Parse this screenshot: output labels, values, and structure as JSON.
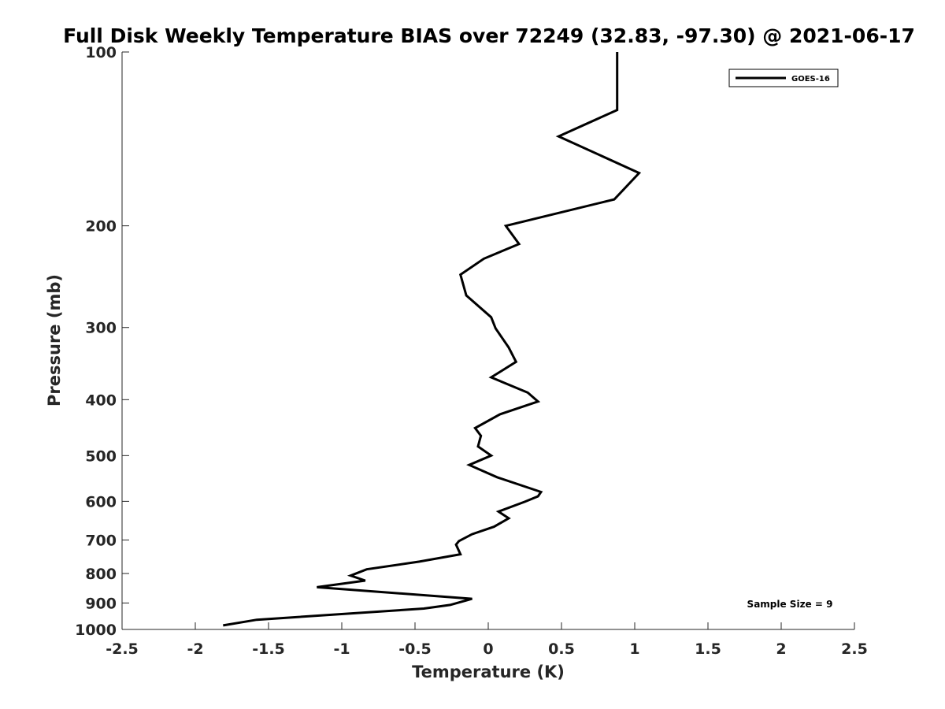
{
  "chart_data": {
    "type": "line",
    "title": "Full Disk Weekly Temperature BIAS over 72249 (32.83, -97.30) @ 2021-06-17",
    "xlabel": "Temperature (K)",
    "ylabel": "Pressure (mb)",
    "xlim": [
      -2.5,
      2.5
    ],
    "ylim": [
      100,
      1000
    ],
    "yscale": "log",
    "y_reversed": true,
    "grid": false,
    "legend_position": "top-right",
    "x_ticks": [
      -2.5,
      -2,
      -1.5,
      -1,
      -0.5,
      0,
      0.5,
      1,
      1.5,
      2,
      2.5
    ],
    "x_tick_labels": [
      "-2.5",
      "-2",
      "-1.5",
      "-1",
      "-0.5",
      "0",
      "0.5",
      "1",
      "1.5",
      "2",
      "2.5"
    ],
    "y_ticks": [
      100,
      200,
      300,
      400,
      500,
      600,
      700,
      800,
      900,
      1000
    ],
    "y_tick_labels": [
      "100",
      "200",
      "300",
      "400",
      "500",
      "600",
      "700",
      "800",
      "900",
      "1000"
    ],
    "annotation": "Sample Size = 9",
    "series": [
      {
        "name": "GOES-16",
        "color": "#000000",
        "points": [
          {
            "x": 0.88,
            "p": 100
          },
          {
            "x": 0.88,
            "p": 126
          },
          {
            "x": 0.48,
            "p": 140
          },
          {
            "x": 1.03,
            "p": 162
          },
          {
            "x": 0.86,
            "p": 180
          },
          {
            "x": 0.12,
            "p": 200
          },
          {
            "x": 0.21,
            "p": 215
          },
          {
            "x": -0.03,
            "p": 228
          },
          {
            "x": -0.19,
            "p": 243
          },
          {
            "x": -0.15,
            "p": 264
          },
          {
            "x": 0.02,
            "p": 288
          },
          {
            "x": 0.05,
            "p": 301
          },
          {
            "x": 0.14,
            "p": 325
          },
          {
            "x": 0.19,
            "p": 344
          },
          {
            "x": 0.02,
            "p": 366
          },
          {
            "x": 0.27,
            "p": 389
          },
          {
            "x": 0.34,
            "p": 403
          },
          {
            "x": 0.08,
            "p": 424
          },
          {
            "x": -0.09,
            "p": 448
          },
          {
            "x": -0.05,
            "p": 462
          },
          {
            "x": -0.06,
            "p": 472
          },
          {
            "x": -0.07,
            "p": 482
          },
          {
            "x": 0.02,
            "p": 500
          },
          {
            "x": -0.13,
            "p": 519
          },
          {
            "x": 0.06,
            "p": 545
          },
          {
            "x": 0.36,
            "p": 578
          },
          {
            "x": 0.34,
            "p": 588
          },
          {
            "x": 0.25,
            "p": 601
          },
          {
            "x": 0.07,
            "p": 625
          },
          {
            "x": 0.14,
            "p": 642
          },
          {
            "x": 0.04,
            "p": 664
          },
          {
            "x": -0.11,
            "p": 684
          },
          {
            "x": -0.2,
            "p": 703
          },
          {
            "x": -0.22,
            "p": 713
          },
          {
            "x": -0.19,
            "p": 741
          },
          {
            "x": -0.47,
            "p": 763
          },
          {
            "x": -0.83,
            "p": 787
          },
          {
            "x": -0.94,
            "p": 807
          },
          {
            "x": -0.84,
            "p": 823
          },
          {
            "x": -1.17,
            "p": 845
          },
          {
            "x": -0.11,
            "p": 885
          },
          {
            "x": -0.26,
            "p": 907
          },
          {
            "x": -0.44,
            "p": 920
          },
          {
            "x": -1.58,
            "p": 962
          },
          {
            "x": -1.81,
            "p": 984
          }
        ]
      }
    ]
  }
}
